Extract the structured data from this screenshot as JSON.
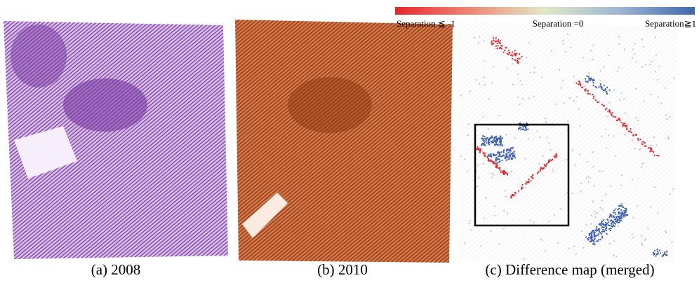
{
  "colorbar": {
    "labels": [
      "Separation ≦ -1",
      "Separation =0",
      "Separation≧1"
    ]
  },
  "panels": [
    {
      "caption": "(a) 2008"
    },
    {
      "caption": "(b) 2010"
    },
    {
      "caption": "(c) Difference map (merged)"
    }
  ]
}
